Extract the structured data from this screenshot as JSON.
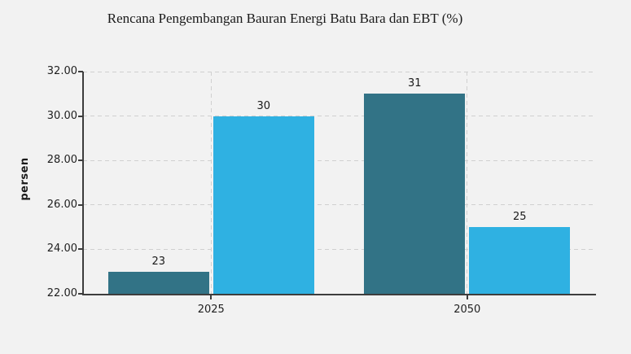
{
  "chart_data": {
    "type": "bar",
    "title": "Rencana Pengembangan Bauran Energi Batu Bara dan EBT (%)",
    "ylabel": "persen",
    "xlabel": "",
    "categories": [
      "2025",
      "2050"
    ],
    "series": [
      {
        "color": "#327386",
        "values": [
          23,
          31
        ]
      },
      {
        "color": "#2fb1e2",
        "values": [
          30,
          25
        ]
      }
    ],
    "ylim": [
      22,
      32
    ],
    "yticks": [
      "22.00",
      "24.00",
      "26.00",
      "28.00",
      "30.00",
      "32.00"
    ],
    "value_labels_visible": true,
    "grid": "dashed",
    "legend": "none",
    "background_color": "#f2f2f2",
    "axis_color": "#3d3d3d",
    "gridline_color": "#d0d0d0"
  }
}
